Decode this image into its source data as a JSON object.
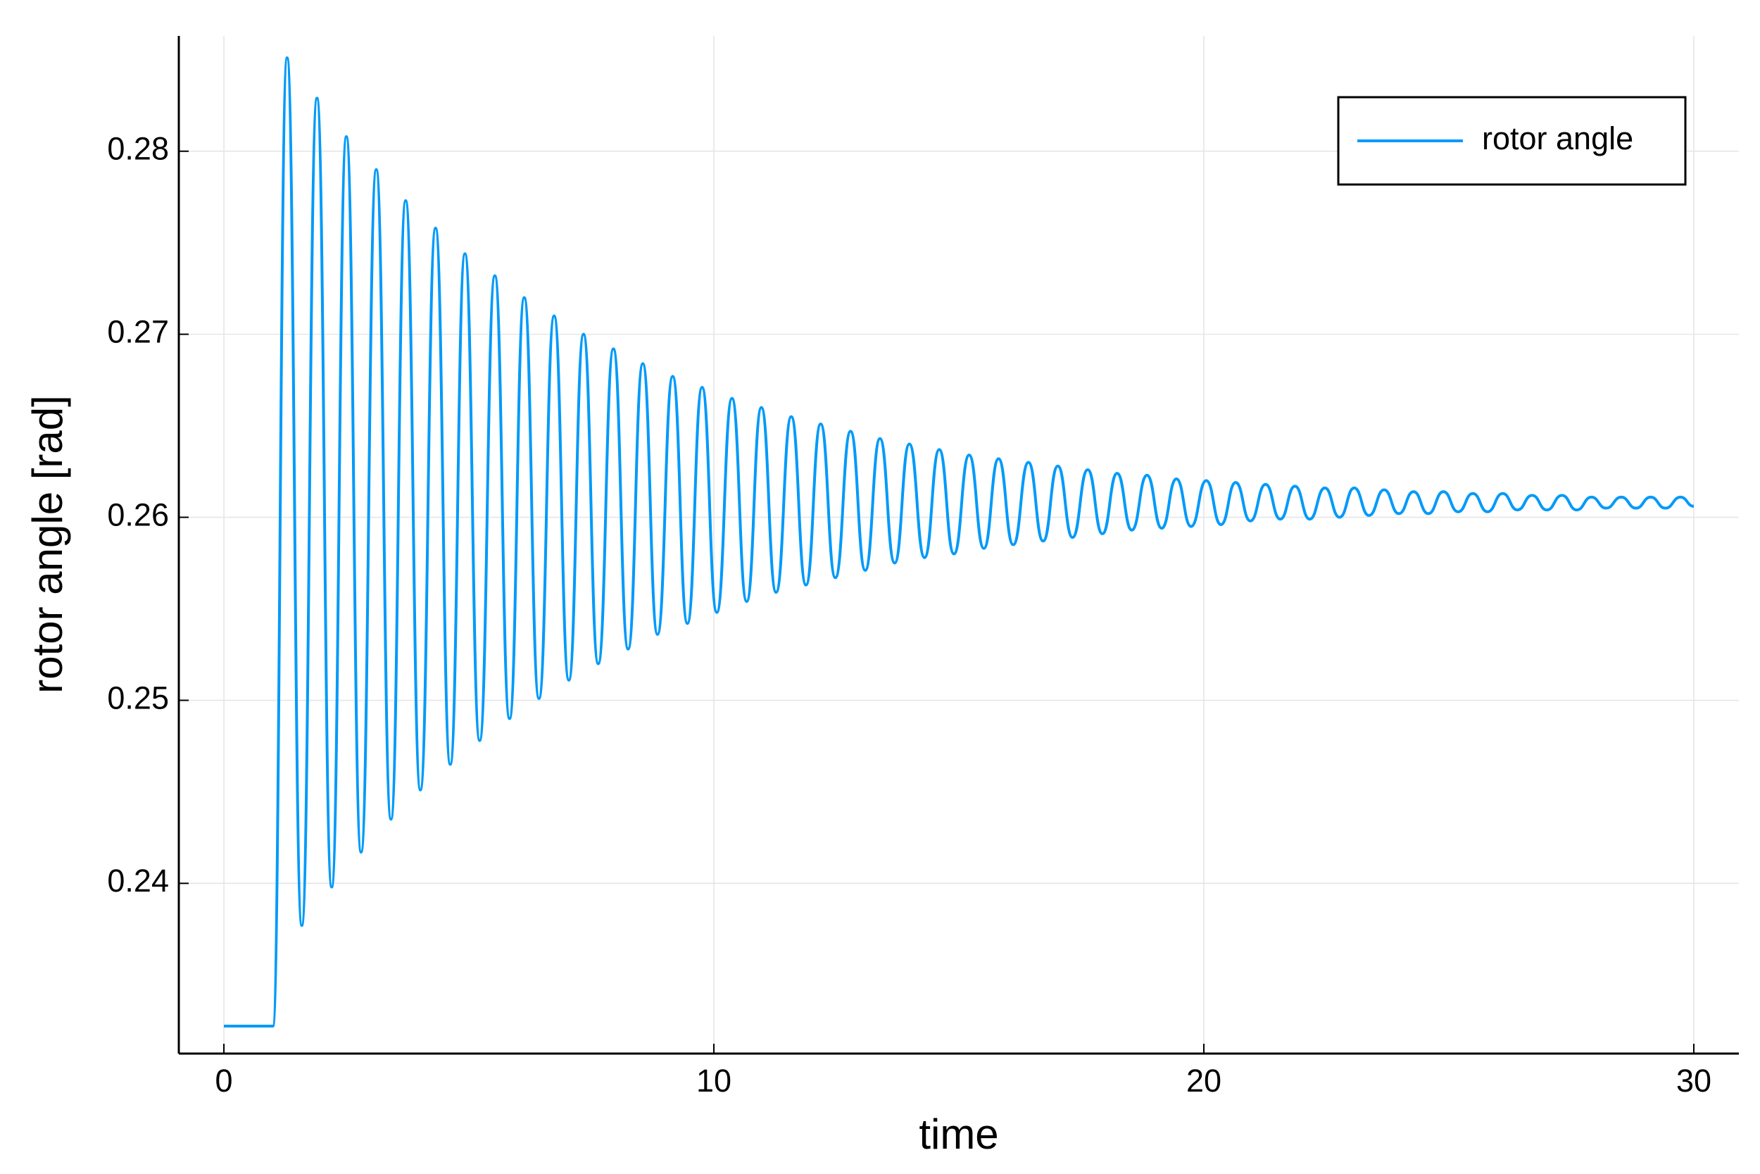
{
  "chart_data": {
    "type": "line",
    "xlabel": "time",
    "ylabel": "rotor angle [rad]",
    "xlim": [
      -0.92,
      30.92
    ],
    "xticks": [
      0,
      10,
      20,
      30
    ],
    "ylim": [
      0.2307,
      0.2863
    ],
    "yticks": [
      0.24,
      0.25,
      0.26,
      0.27,
      0.28
    ],
    "grid": true,
    "legend": "top-right",
    "series": [
      {
        "name": "rotor angle",
        "color": "#009af9",
        "x": [
          0,
          1.0,
          1.29,
          1.59,
          1.9,
          2.2,
          2.5,
          2.8,
          3.11,
          3.41,
          3.71,
          4.01,
          4.32,
          4.62,
          4.92,
          5.22,
          5.53,
          5.83,
          6.13,
          6.43,
          6.74,
          7.04,
          7.34,
          7.64,
          7.95,
          8.25,
          8.55,
          8.85,
          9.16,
          9.46,
          9.76,
          10.06,
          10.37,
          10.67,
          10.97,
          11.27,
          11.58,
          11.88,
          12.18,
          12.48,
          12.79,
          13.09,
          13.39,
          13.69,
          13.99,
          14.3,
          14.6,
          14.9,
          15.21,
          15.51,
          15.81,
          16.11,
          16.42,
          16.72,
          17.02,
          17.32,
          17.63,
          17.93,
          18.23,
          18.53,
          18.84,
          19.14,
          19.44,
          19.74,
          20.05,
          20.35,
          20.65,
          20.95,
          21.26,
          21.56,
          21.86,
          22.16,
          22.47,
          22.77,
          23.07,
          23.37,
          23.68,
          23.98,
          24.28,
          24.58,
          24.89,
          25.19,
          25.49,
          25.79,
          26.1,
          26.4,
          26.7,
          27.0,
          27.31,
          27.61,
          27.91,
          28.21,
          28.52,
          28.82,
          29.12,
          29.42,
          29.73,
          30.0
        ],
        "values": [
          0.2322,
          0.2322,
          0.2851,
          0.2377,
          0.2829,
          0.2398,
          0.2808,
          0.2417,
          0.279,
          0.2435,
          0.2773,
          0.2451,
          0.2758,
          0.2465,
          0.2744,
          0.2478,
          0.2732,
          0.249,
          0.272,
          0.2501,
          0.271,
          0.2511,
          0.27,
          0.252,
          0.2692,
          0.2528,
          0.2684,
          0.2536,
          0.2677,
          0.2542,
          0.2671,
          0.2548,
          0.2665,
          0.2554,
          0.266,
          0.2559,
          0.2655,
          0.2563,
          0.2651,
          0.2567,
          0.2647,
          0.2571,
          0.2643,
          0.2575,
          0.264,
          0.2578,
          0.2637,
          0.258,
          0.2634,
          0.2583,
          0.2632,
          0.2585,
          0.263,
          0.2587,
          0.2628,
          0.2589,
          0.2626,
          0.2591,
          0.2624,
          0.2593,
          0.2623,
          0.2594,
          0.2621,
          0.2595,
          0.262,
          0.2596,
          0.2619,
          0.2598,
          0.2618,
          0.2599,
          0.2617,
          0.2599,
          0.2616,
          0.26,
          0.2616,
          0.2601,
          0.2615,
          0.2602,
          0.2614,
          0.2602,
          0.2614,
          0.2603,
          0.2613,
          0.2603,
          0.2613,
          0.2604,
          0.2612,
          0.2604,
          0.2612,
          0.2604,
          0.2611,
          0.2605,
          0.2611,
          0.2605,
          0.2611,
          0.2605,
          0.2611,
          0.2606
        ]
      }
    ]
  }
}
